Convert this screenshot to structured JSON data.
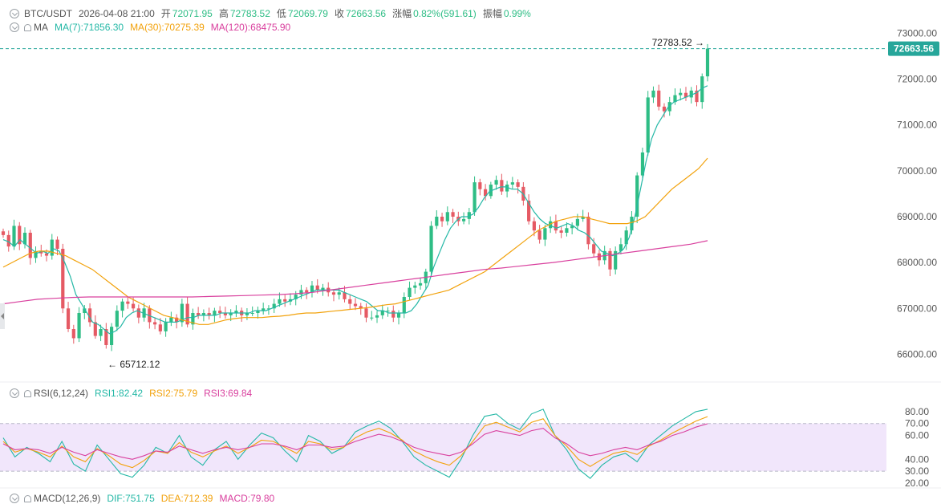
{
  "header": {
    "symbol": "BTC/USDT",
    "datetime": "2026-04-08 21:00",
    "open_label": "开",
    "open_value": "72071.95",
    "high_label": "高",
    "high_value": "72783.52",
    "low_label": "低",
    "low_value": "72069.79",
    "close_label": "收",
    "close_value": "72663.56",
    "change_label": "涨幅",
    "change_value": "0.82%(591.61)",
    "amplitude_label": "振幅",
    "amplitude_value": "0.99%"
  },
  "ma_legend": {
    "name": "MA",
    "ma7": "MA(7):71856.30",
    "ma30": "MA(30):70275.39",
    "ma120": "MA(120):68475.90"
  },
  "rsi_legend": {
    "name": "RSI(6,12,24)",
    "rsi1": "RSI1:82.42",
    "rsi2": "RSI2:75.79",
    "rsi3": "RSI3:69.84"
  },
  "macd_legend": {
    "name": "MACD(12,26,9)",
    "dif": "DIF:751.75",
    "dea": "DEA:712.39",
    "macd": "MACD:79.80"
  },
  "colors": {
    "up": "#2ebd85",
    "down": "#e55a64",
    "ma7": "#24b8a6",
    "ma30": "#f2a20c",
    "ma120": "#d9409e",
    "rsi_band": "#f1e6fb",
    "price_tag": "#26a69a"
  },
  "chart_data": [
    {
      "type": "candlestick",
      "title": "BTC/USDT",
      "ylim": [
        65500,
        73200
      ],
      "y_ticks": [
        66000,
        67000,
        68000,
        69000,
        70000,
        71000,
        72000,
        73000
      ],
      "y_tick_labels": [
        "66000.00",
        "67000.00",
        "68000.00",
        "69000.00",
        "70000.00",
        "71000.00",
        "72000.00",
        "73000.00"
      ],
      "current_price": "72663.56",
      "high_annotation": "72783.52 →",
      "low_annotation": "← 65712.12",
      "closes": [
        68600,
        68350,
        68800,
        68400,
        68650,
        68100,
        68250,
        68200,
        68150,
        68500,
        68300,
        67000,
        66550,
        66350,
        66900,
        67000,
        66700,
        66400,
        66550,
        66200,
        66600,
        66950,
        67150,
        67100,
        67000,
        66800,
        67000,
        66700,
        66650,
        66500,
        66700,
        66800,
        66700,
        67100,
        66650,
        66900,
        66850,
        66900,
        66850,
        66950,
        66900,
        66850,
        66900,
        66950,
        66850,
        66900,
        66900,
        66950,
        67000,
        67000,
        67100,
        67200,
        67150,
        67200,
        67300,
        67400,
        67350,
        67500,
        67400,
        67450,
        67350,
        67300,
        67350,
        67200,
        67100,
        67050,
        67000,
        66800,
        66800,
        66850,
        66950,
        66950,
        66800,
        66900,
        67250,
        67450,
        67500,
        67550,
        67800,
        68800,
        69000,
        68900,
        69100,
        69000,
        68900,
        68950,
        69100,
        69750,
        69600,
        69450,
        69700,
        69800,
        69550,
        69700,
        69750,
        69650,
        69350,
        68900,
        68700,
        68500,
        68750,
        68900,
        68700,
        68650,
        68750,
        68800,
        68950,
        69000,
        68400,
        68200,
        68050,
        68250,
        67850,
        68250,
        68400,
        68700,
        69000,
        69900,
        70400,
        71600,
        71750,
        71400,
        71300,
        71500,
        71650,
        71700,
        71600,
        71750,
        71500,
        72060,
        72664
      ],
      "ma7": [
        68500,
        68450,
        68350,
        68500,
        68400,
        68300,
        68200,
        68250,
        68200,
        68300,
        68250,
        68000,
        67700,
        67300,
        67100,
        66900,
        66700,
        66650,
        66550,
        66450,
        66500,
        66600,
        66800,
        66900,
        66950,
        66900,
        66850,
        66800,
        66750,
        66700,
        66700,
        66700,
        66750,
        66800,
        66800,
        66850,
        66850,
        66850,
        66850,
        66900,
        66900,
        66900,
        66900,
        66900,
        66900,
        66950,
        66950,
        66950,
        67000,
        67050,
        67100,
        67150,
        67200,
        67250,
        67300,
        67350,
        67400,
        67400,
        67400,
        67400,
        67400,
        67350,
        67300,
        67250,
        67200,
        67150,
        67050,
        66950,
        66950,
        66900,
        66900,
        66900,
        66900,
        66950,
        67100,
        67300,
        67500,
        67900,
        68200,
        68500,
        68750,
        68900,
        69000,
        69000,
        69050,
        69200,
        69400,
        69550,
        69600,
        69650,
        69650,
        69600,
        69600,
        69500,
        69300,
        69100,
        68950,
        68850,
        68800,
        68750,
        68800,
        68850,
        68800,
        68700,
        68650,
        68550,
        68400,
        68250,
        68200,
        68150,
        68200,
        68300,
        68550,
        69000,
        69600,
        70200,
        70700,
        71000,
        71200,
        71400,
        71500,
        71550,
        71600,
        71650,
        71700,
        71800,
        71856
      ],
      "ma30": [
        67900,
        68000,
        68100,
        68200,
        68250,
        68250,
        68200,
        68150,
        68050,
        67950,
        67850,
        67700,
        67550,
        67400,
        67250,
        67150,
        67050,
        66950,
        66850,
        66800,
        66750,
        66700,
        66650,
        66650,
        66700,
        66750,
        66780,
        66800,
        66800,
        66800,
        66820,
        66830,
        66850,
        66880,
        66900,
        66900,
        66920,
        66940,
        66960,
        66980,
        67000,
        67020,
        67050,
        67080,
        67100,
        67150,
        67200,
        67250,
        67300,
        67350,
        67400,
        67500,
        67600,
        67700,
        67800,
        67950,
        68100,
        68250,
        68400,
        68550,
        68700,
        68800,
        68900,
        68950,
        69000,
        69000,
        68950,
        68900,
        68850,
        68850,
        68850,
        68900,
        69000,
        69200,
        69400,
        69600,
        69750,
        69900,
        70050,
        70275
      ],
      "ma120": [
        67100,
        67150,
        67200,
        67220,
        67240,
        67250,
        67250,
        67250,
        67250,
        67250,
        67250,
        67250,
        67260,
        67270,
        67280,
        67290,
        67300,
        67320,
        67350,
        67400,
        67450,
        67500,
        67550,
        67600,
        67650,
        67700,
        67750,
        67800,
        67850,
        67880,
        67920,
        67960,
        68000,
        68050,
        68100,
        68150,
        68200,
        68250,
        68300,
        68350,
        68400,
        68476
      ]
    },
    {
      "type": "line",
      "title": "RSI(6,12,24)",
      "ylim": [
        20,
        90
      ],
      "y_ticks": [
        80,
        70,
        60,
        40,
        30,
        20
      ],
      "y_tick_labels": [
        "80.00",
        "70.00",
        "60.00",
        "40.00",
        "30.00",
        "20.00"
      ],
      "band": [
        30,
        70
      ],
      "series": [
        {
          "name": "RSI1",
          "values": [
            58,
            42,
            50,
            45,
            38,
            55,
            36,
            30,
            52,
            40,
            28,
            25,
            35,
            50,
            45,
            60,
            42,
            35,
            48,
            55,
            40,
            52,
            62,
            58,
            47,
            38,
            60,
            55,
            45,
            50,
            63,
            68,
            72,
            66,
            55,
            42,
            35,
            30,
            25,
            40,
            60,
            76,
            78,
            70,
            65,
            78,
            82,
            60,
            48,
            32,
            24,
            35,
            42,
            45,
            38,
            52,
            60,
            68,
            74,
            80,
            82
          ]
        },
        {
          "name": "RSI2",
          "values": [
            55,
            46,
            49,
            46,
            42,
            51,
            42,
            38,
            49,
            43,
            36,
            33,
            39,
            47,
            45,
            54,
            46,
            42,
            47,
            51,
            45,
            50,
            56,
            55,
            50,
            45,
            55,
            53,
            48,
            50,
            58,
            63,
            66,
            62,
            56,
            47,
            42,
            38,
            35,
            43,
            55,
            68,
            71,
            67,
            63,
            71,
            74,
            60,
            51,
            40,
            34,
            40,
            45,
            47,
            44,
            51,
            56,
            62,
            67,
            72,
            75.8
          ]
        },
        {
          "name": "RSI3",
          "values": [
            53,
            48,
            49,
            48,
            45,
            50,
            46,
            43,
            48,
            45,
            42,
            40,
            43,
            47,
            46,
            51,
            48,
            45,
            48,
            50,
            48,
            50,
            53,
            53,
            51,
            48,
            52,
            52,
            50,
            51,
            55,
            58,
            61,
            59,
            55,
            50,
            47,
            45,
            43,
            46,
            53,
            61,
            64,
            62,
            60,
            64,
            66,
            58,
            53,
            46,
            43,
            45,
            48,
            50,
            48,
            52,
            55,
            60,
            63,
            67,
            69.8
          ]
        }
      ]
    }
  ]
}
